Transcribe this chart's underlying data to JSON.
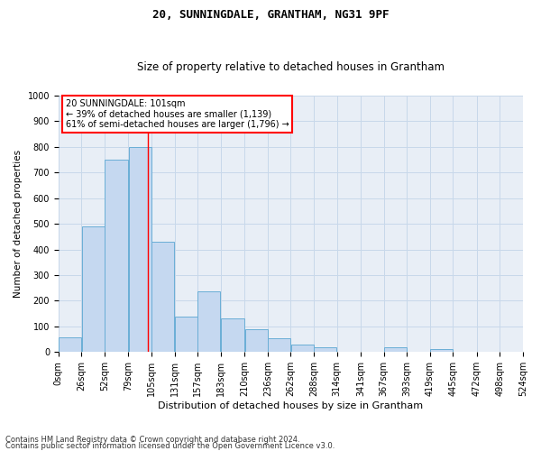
{
  "title1": "20, SUNNINGDALE, GRANTHAM, NG31 9PF",
  "title2": "Size of property relative to detached houses in Grantham",
  "xlabel": "Distribution of detached houses by size in Grantham",
  "ylabel": "Number of detached properties",
  "footnote1": "Contains HM Land Registry data © Crown copyright and database right 2024.",
  "footnote2": "Contains public sector information licensed under the Open Government Licence v3.0.",
  "annotation_line1": "20 SUNNINGDALE: 101sqm",
  "annotation_line2": "← 39% of detached houses are smaller (1,139)",
  "annotation_line3": "61% of semi-detached houses are larger (1,796) →",
  "bar_color": "#c5d8f0",
  "bar_edge_color": "#6aaed6",
  "grid_color": "#c8d8ea",
  "background_color": "#e8eef6",
  "property_line_color": "red",
  "property_sqm": 101,
  "bin_edges": [
    0,
    26,
    52,
    79,
    105,
    131,
    157,
    183,
    210,
    236,
    262,
    288,
    314,
    341,
    367,
    393,
    419,
    445,
    472,
    498,
    524
  ],
  "bar_heights": [
    58,
    490,
    750,
    800,
    430,
    140,
    235,
    130,
    90,
    55,
    30,
    18,
    0,
    0,
    18,
    0,
    12,
    0,
    0,
    0
  ],
  "ylim": [
    0,
    1000
  ],
  "yticks": [
    0,
    100,
    200,
    300,
    400,
    500,
    600,
    700,
    800,
    900,
    1000
  ],
  "annotation_box_color": "white",
  "annotation_box_edge": "red",
  "title1_fontsize": 9,
  "title2_fontsize": 8.5,
  "xlabel_fontsize": 8,
  "ylabel_fontsize": 7.5,
  "tick_fontsize": 7,
  "annotation_fontsize": 7,
  "footnote_fontsize": 6
}
